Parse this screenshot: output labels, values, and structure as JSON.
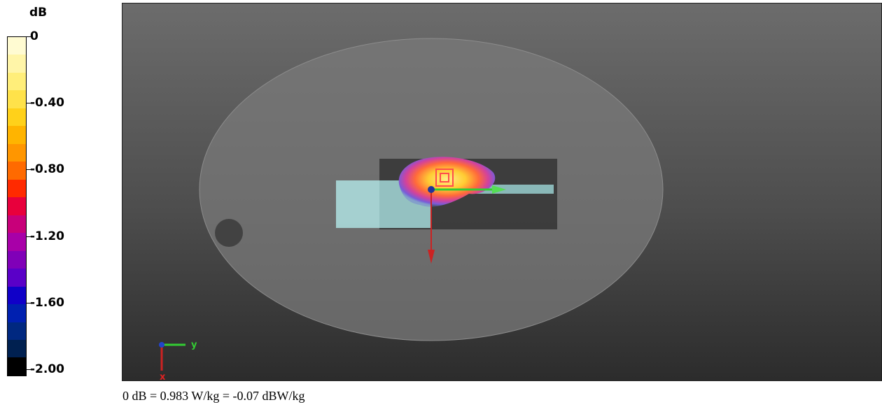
{
  "legend": {
    "unit": "dB",
    "ticks": [
      "0",
      "-0.40",
      "-0.80",
      "-1.20",
      "-1.60",
      "-2.00"
    ],
    "colors": [
      "#fffbd2",
      "#fff5a8",
      "#ffee7a",
      "#ffe24a",
      "#ffd11a",
      "#ffb400",
      "#ff9600",
      "#ff6a00",
      "#ff2a00",
      "#e8003c",
      "#c8007a",
      "#a800a8",
      "#8000b8",
      "#5a00c8",
      "#1000c8",
      "#0020b0",
      "#002880",
      "#002050",
      "#000000"
    ]
  },
  "axes": {
    "y_label": "y",
    "x_label": "x"
  },
  "caption": "0 dB = 0.983 W/kg = -0.07 dBW/kg"
}
